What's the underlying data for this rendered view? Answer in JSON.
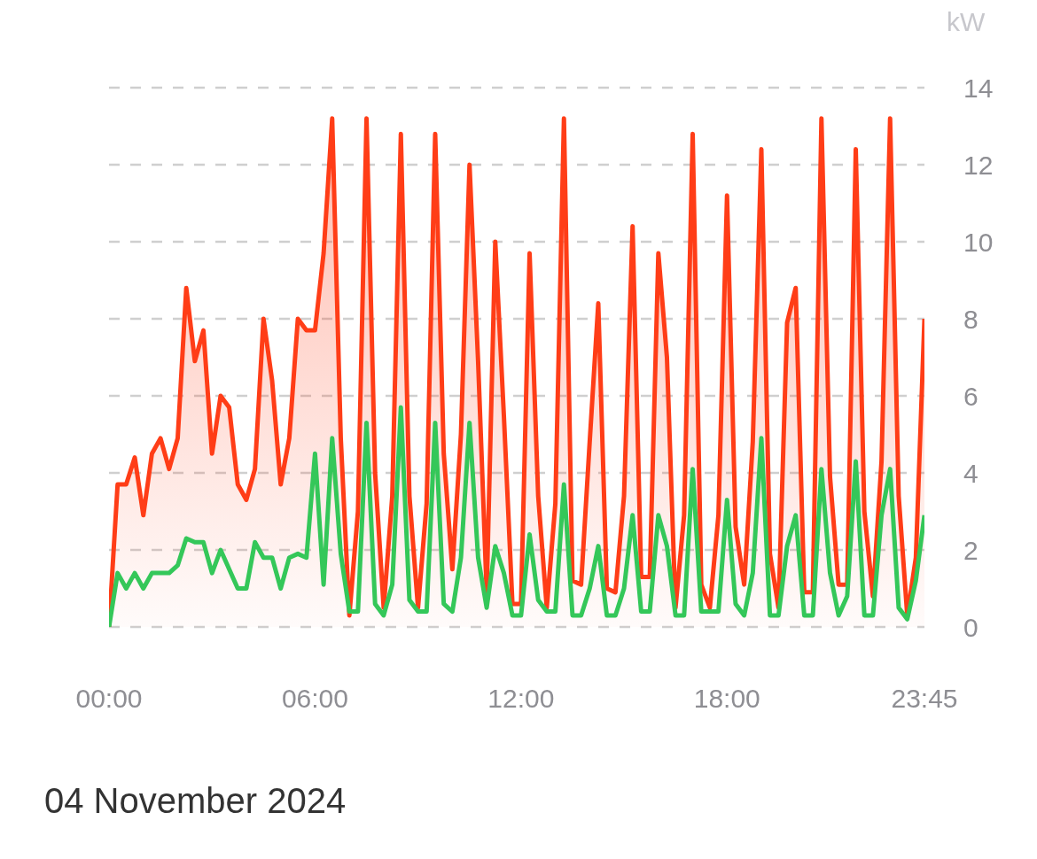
{
  "chart_data": {
    "type": "area",
    "ylabel": "kW",
    "annotations": [
      "04 November 2024"
    ],
    "x": [
      0,
      0.25,
      0.5,
      0.75,
      1,
      1.25,
      1.5,
      1.75,
      2,
      2.25,
      2.5,
      2.75,
      3,
      3.25,
      3.5,
      3.75,
      4,
      4.25,
      4.5,
      4.75,
      5,
      5.25,
      5.5,
      5.75,
      6,
      6.25,
      6.5,
      6.75,
      7,
      7.25,
      7.5,
      7.75,
      8,
      8.25,
      8.5,
      8.75,
      9,
      9.25,
      9.5,
      9.75,
      10,
      10.25,
      10.5,
      10.75,
      11,
      11.25,
      11.5,
      11.75,
      12,
      12.25,
      12.5,
      12.75,
      13,
      13.25,
      13.5,
      13.75,
      14,
      14.25,
      14.5,
      14.75,
      15,
      15.25,
      15.5,
      15.75,
      16,
      16.25,
      16.5,
      16.75,
      17,
      17.25,
      17.5,
      17.75,
      18,
      18.25,
      18.5,
      18.75,
      19,
      19.25,
      19.5,
      19.75,
      20,
      20.25,
      20.5,
      20.75,
      21,
      21.25,
      21.5,
      21.75,
      22,
      22.25,
      22.5,
      22.75,
      23,
      23.25,
      23.5,
      23.75
    ],
    "series": [
      {
        "color": "#ff3d17",
        "values": [
          0,
          3.7,
          3.7,
          4.4,
          2.9,
          4.5,
          4.9,
          4.1,
          4.9,
          8.8,
          6.9,
          7.7,
          4.5,
          6,
          5.7,
          3.7,
          3.3,
          4.1,
          8,
          6.4,
          3.7,
          4.9,
          8,
          7.7,
          7.7,
          9.7,
          13.2,
          4.9,
          0.3,
          3,
          13.2,
          4,
          0.5,
          3.4,
          12.8,
          3.4,
          0.5,
          3.2,
          12.8,
          4.5,
          1.5,
          5,
          12,
          6.9,
          0.9,
          10,
          5.5,
          0.6,
          0.6,
          9.7,
          3.4,
          0.5,
          3.2,
          13.2,
          1.2,
          1.1,
          4.8,
          8.4,
          1,
          0.9,
          3.4,
          10.4,
          1.3,
          1.3,
          9.7,
          7,
          0.5,
          2.9,
          12.8,
          1.1,
          0.5,
          2.9,
          11.2,
          2.6,
          1.1,
          4.8,
          12.4,
          1.9,
          0.5,
          7.9,
          8.8,
          0.9,
          0.9,
          13.2,
          3.9,
          1.1,
          1.1,
          12.4,
          3,
          0.8,
          4.3,
          13.2,
          3.4,
          0.3,
          1.8,
          8
        ]
      },
      {
        "type": "line",
        "color": "#34c759",
        "values": [
          0,
          1.4,
          1,
          1.4,
          1,
          1.4,
          1.4,
          1.4,
          1.6,
          2.3,
          2.2,
          2.2,
          1.4,
          2,
          1.5,
          1,
          1,
          2.2,
          1.8,
          1.8,
          1,
          1.8,
          1.9,
          1.8,
          4.5,
          1.1,
          4.9,
          1.9,
          0.4,
          0.4,
          5.3,
          0.6,
          0.3,
          1.1,
          5.7,
          0.7,
          0.4,
          0.4,
          5.3,
          0.6,
          0.4,
          1.8,
          5.3,
          1.8,
          0.5,
          2.1,
          1.4,
          0.3,
          0.3,
          2.4,
          0.7,
          0.4,
          0.4,
          3.7,
          0.3,
          0.3,
          1,
          2.1,
          0.3,
          0.3,
          1,
          2.9,
          0.4,
          0.4,
          2.9,
          2.1,
          0.3,
          0.3,
          4.1,
          0.4,
          0.4,
          0.4,
          3.3,
          0.6,
          0.3,
          1.4,
          4.9,
          0.3,
          0.3,
          2.1,
          2.9,
          0.3,
          0.3,
          4.1,
          1.4,
          0.3,
          0.8,
          4.3,
          0.3,
          0.3,
          2.9,
          4.1,
          0.5,
          0.2,
          1.2,
          2.9
        ]
      }
    ],
    "xlim": [
      0,
      23.75
    ],
    "xticks": [
      {
        "value": 0,
        "label": "00:00"
      },
      {
        "value": 6,
        "label": "06:00"
      },
      {
        "value": 12,
        "label": "12:00"
      },
      {
        "value": 18,
        "label": "18:00"
      },
      {
        "value": 23.75,
        "label": "23:45"
      }
    ],
    "ylim": [
      0,
      14
    ],
    "yticks": [
      0,
      2,
      4,
      6,
      8,
      10,
      12,
      14
    ],
    "grid": "y",
    "legend": false,
    "marker": "none",
    "line_style": "solid"
  }
}
